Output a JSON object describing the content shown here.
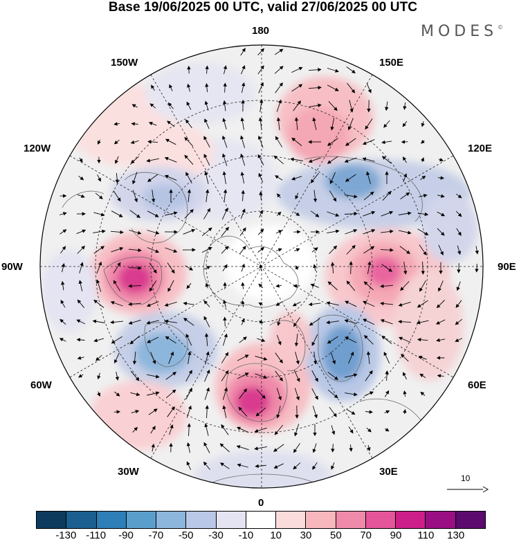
{
  "title": "Base 19/06/2025 00 UTC, valid 27/06/2025 00 UTC",
  "brand": "MODES",
  "brand_mark": "©",
  "longitude_labels": {
    "n180": "180",
    "e150": "150E",
    "e120": "120E",
    "e90": "90E",
    "e60": "60E",
    "e30": "30E",
    "s0": "0",
    "w30": "30W",
    "w60": "60W",
    "w90": "90W",
    "w120": "120W",
    "w150": "150W"
  },
  "reference_vector_label": "10",
  "colorbar": {
    "colors": [
      "#0d3b5e",
      "#1a5f8f",
      "#2e7fb7",
      "#5a9fcc",
      "#8cb6dc",
      "#b9c8e6",
      "#e4e4f2",
      "#ffffff",
      "#fbdcdc",
      "#f7b7bd",
      "#f08aaa",
      "#e5559a",
      "#cc1f8a",
      "#9a0f84",
      "#5c0a6e"
    ],
    "tick_labels": [
      "-130",
      "-110",
      "-90",
      "-70",
      "-50",
      "-30",
      "-10",
      "10",
      "30",
      "50",
      "70",
      "90",
      "110",
      "130"
    ]
  }
}
